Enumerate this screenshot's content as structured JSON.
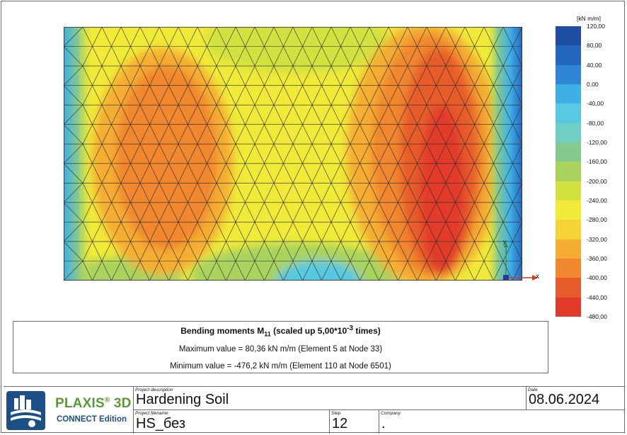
{
  "legend": {
    "unit": "[kN m/m]",
    "ticks": [
      "120,00",
      "80,00",
      "40,00",
      "0,00",
      "-40,00",
      "-80,00",
      "-120,00",
      "-160,00",
      "-200,00",
      "-240,00",
      "-280,00",
      "-320,00",
      "-360,00",
      "-400,00",
      "-440,00",
      "-480,00"
    ],
    "colors": [
      "#1e4fa4",
      "#2467c0",
      "#2f86d6",
      "#3fb0e6",
      "#57c9e0",
      "#6fcfc2",
      "#86c98e",
      "#a9d35e",
      "#d2e140",
      "#f1ea38",
      "#f6d436",
      "#f5ad33",
      "#f1872f",
      "#e85c2c",
      "#e23a2a"
    ]
  },
  "axes": {
    "x_label": "x",
    "y_label": "y"
  },
  "caption": {
    "title_main": "Bending moments M",
    "title_sub": "11",
    "title_rest": " (scaled up 5,00*10",
    "title_exp": "-3",
    "title_end": " times)",
    "max_text": "Maximum value = 80,36 kN m/m (Element 5 at Node 33)",
    "min_text": "Minimum value = -476,2 kN m/m (Element 110 at Node 6501)"
  },
  "titleblock": {
    "brand": "PLAXIS",
    "brand_mark": "®",
    "brand_suffix": " 3D",
    "edition": "CONNECT Edition",
    "project_description_label": "Project description",
    "project_description": "Hardening Soil",
    "date_label": "Date",
    "date": "08.06.2024",
    "project_filename_label": "Project filename",
    "project_filename": "HS_без",
    "step_label": "Step",
    "step": "12",
    "company_label": "Company",
    "company": "."
  }
}
